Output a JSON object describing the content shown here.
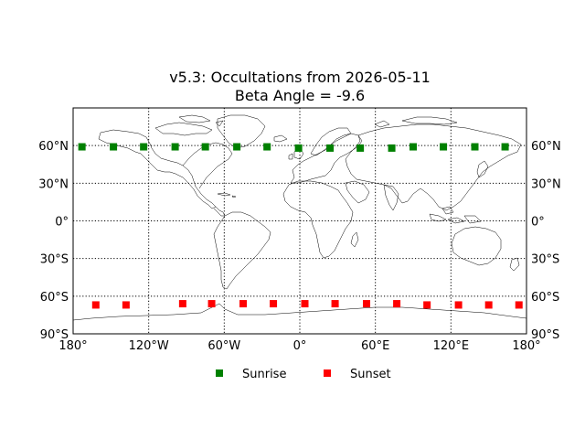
{
  "title": {
    "line1": "v5.3: Occultations from 2026-05-11",
    "line2": "Beta Angle = -9.6"
  },
  "chart_data": {
    "type": "scatter",
    "projection": "equirectangular",
    "xlim": [
      -180,
      180
    ],
    "ylim": [
      -90,
      90
    ],
    "grid": true,
    "legend_position": "bottom-center",
    "x_ticks": [
      {
        "value": -180,
        "label": "180°"
      },
      {
        "value": -120,
        "label": "120°W"
      },
      {
        "value": -60,
        "label": "60°W"
      },
      {
        "value": 0,
        "label": "0°"
      },
      {
        "value": 60,
        "label": "60°E"
      },
      {
        "value": 120,
        "label": "120°E"
      },
      {
        "value": 180,
        "label": "180°"
      }
    ],
    "y_ticks": [
      {
        "value": 60,
        "label": "60°N"
      },
      {
        "value": 30,
        "label": "30°N"
      },
      {
        "value": 0,
        "label": "0°"
      },
      {
        "value": -30,
        "label": "30°S"
      },
      {
        "value": -60,
        "label": "60°S"
      },
      {
        "value": -90,
        "label": "90°S"
      }
    ],
    "series": [
      {
        "name": "Sunrise",
        "color": "#008000",
        "marker": "square",
        "points": [
          {
            "lon": -173,
            "lat": 59
          },
          {
            "lon": -148,
            "lat": 59
          },
          {
            "lon": -124,
            "lat": 59
          },
          {
            "lon": -99,
            "lat": 59
          },
          {
            "lon": -75,
            "lat": 59
          },
          {
            "lon": -50,
            "lat": 59
          },
          {
            "lon": -26,
            "lat": 59
          },
          {
            "lon": -1,
            "lat": 58
          },
          {
            "lon": 24,
            "lat": 58
          },
          {
            "lon": 48,
            "lat": 58
          },
          {
            "lon": 73,
            "lat": 58
          },
          {
            "lon": 90,
            "lat": 59
          },
          {
            "lon": 114,
            "lat": 59
          },
          {
            "lon": 139,
            "lat": 59
          },
          {
            "lon": 163,
            "lat": 59
          }
        ]
      },
      {
        "name": "Sunset",
        "color": "#ff0000",
        "marker": "square",
        "points": [
          {
            "lon": -162,
            "lat": -67
          },
          {
            "lon": -138,
            "lat": -67
          },
          {
            "lon": -93,
            "lat": -66
          },
          {
            "lon": -70,
            "lat": -66
          },
          {
            "lon": -45,
            "lat": -66
          },
          {
            "lon": -21,
            "lat": -66
          },
          {
            "lon": 4,
            "lat": -66
          },
          {
            "lon": 28,
            "lat": -66
          },
          {
            "lon": 53,
            "lat": -66
          },
          {
            "lon": 77,
            "lat": -66
          },
          {
            "lon": 101,
            "lat": -67
          },
          {
            "lon": 126,
            "lat": -67
          },
          {
            "lon": 150,
            "lat": -67
          },
          {
            "lon": 174,
            "lat": -67
          }
        ]
      }
    ]
  }
}
